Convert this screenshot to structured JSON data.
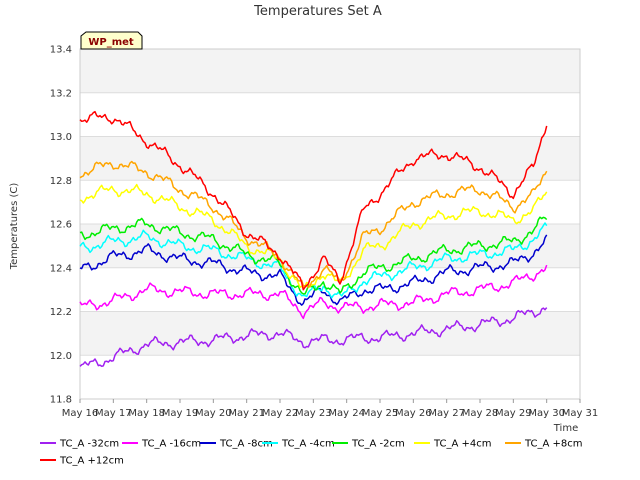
{
  "chart_data": {
    "type": "line",
    "title": "Temperatures Set A",
    "xlabel": "Time",
    "ylabel": "Temperatures (C)",
    "site_label": "WP_met",
    "ylim": [
      11.8,
      13.4
    ],
    "y_ticks": [
      "11.8",
      "12.0",
      "12.2",
      "12.4",
      "12.6",
      "12.8",
      "13.0",
      "13.2",
      "13.4"
    ],
    "xlim": [
      16,
      31
    ],
    "x_ticks": [
      "May 16",
      "May 17",
      "May 18",
      "May 19",
      "May 20",
      "May 21",
      "May 22",
      "May 23",
      "May 24",
      "May 25",
      "May 26",
      "May 27",
      "May 28",
      "May 29",
      "May 30",
      "May 31"
    ],
    "x": [
      16.0,
      17.0,
      18.0,
      19.0,
      20.0,
      21.0,
      22.0,
      22.7,
      23.3,
      23.8,
      24.5,
      25.0,
      26.0,
      27.0,
      28.0,
      29.0,
      29.6,
      30.0
    ],
    "grid": true,
    "band_color": "#f3f3f3",
    "series": [
      {
        "name": "TC_A -32cm",
        "color": "#a020f0",
        "values": [
          11.94,
          11.99,
          12.05,
          12.06,
          12.07,
          12.09,
          12.1,
          12.06,
          12.07,
          12.07,
          12.08,
          12.08,
          12.1,
          12.12,
          12.14,
          12.17,
          12.2,
          12.22
        ]
      },
      {
        "name": "TC_A -16cm",
        "color": "#ff00ff",
        "values": [
          12.22,
          12.25,
          12.3,
          12.29,
          12.28,
          12.28,
          12.28,
          12.2,
          12.24,
          12.22,
          12.22,
          12.23,
          12.24,
          12.28,
          12.3,
          12.33,
          12.37,
          12.4
        ]
      },
      {
        "name": "TC_A -8cm",
        "color": "#0000cd",
        "values": [
          12.39,
          12.45,
          12.48,
          12.44,
          12.42,
          12.38,
          12.36,
          12.24,
          12.3,
          12.24,
          12.3,
          12.3,
          12.33,
          12.38,
          12.4,
          12.42,
          12.47,
          12.52
        ]
      },
      {
        "name": "TC_A -4cm",
        "color": "#00ffff",
        "values": [
          12.49,
          12.52,
          12.54,
          12.5,
          12.48,
          12.44,
          12.4,
          12.26,
          12.32,
          12.26,
          12.34,
          12.36,
          12.4,
          12.44,
          12.46,
          12.48,
          12.53,
          12.58
        ]
      },
      {
        "name": "TC_A -2cm",
        "color": "#00ee00",
        "values": [
          12.55,
          12.58,
          12.6,
          12.56,
          12.53,
          12.46,
          12.42,
          12.27,
          12.34,
          12.28,
          12.38,
          12.4,
          12.44,
          12.48,
          12.5,
          12.52,
          12.57,
          12.63
        ]
      },
      {
        "name": "TC_A +4cm",
        "color": "#ffff00",
        "values": [
          12.72,
          12.76,
          12.74,
          12.68,
          12.62,
          12.5,
          12.44,
          12.29,
          12.38,
          12.32,
          12.48,
          12.5,
          12.6,
          12.64,
          12.66,
          12.62,
          12.66,
          12.75
        ]
      },
      {
        "name": "TC_A +8cm",
        "color": "#ffa500",
        "values": [
          12.83,
          12.88,
          12.84,
          12.76,
          12.68,
          12.54,
          12.45,
          12.3,
          12.4,
          12.33,
          12.54,
          12.58,
          12.7,
          12.74,
          12.76,
          12.68,
          12.73,
          12.85
        ]
      },
      {
        "name": "TC_A +12cm",
        "color": "#ff0000",
        "values": [
          13.08,
          13.09,
          12.98,
          12.87,
          12.74,
          12.56,
          12.46,
          12.31,
          12.44,
          12.34,
          12.66,
          12.74,
          12.9,
          12.92,
          12.86,
          12.74,
          12.86,
          13.07
        ]
      }
    ]
  }
}
